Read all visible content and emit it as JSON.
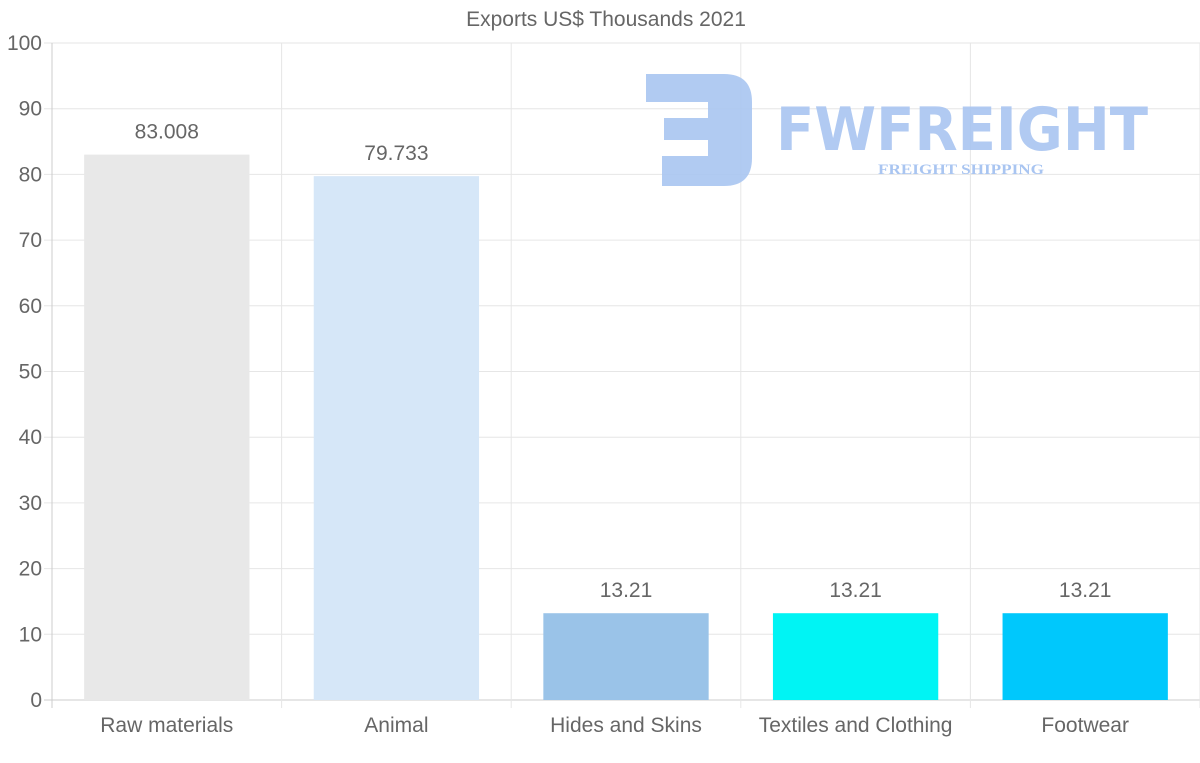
{
  "chart_data": {
    "type": "bar",
    "title": "Exports US$ Thousands 2021",
    "xlabel": "",
    "ylabel": "",
    "ylim": [
      0,
      100
    ],
    "yticks": [
      0,
      10,
      20,
      30,
      40,
      50,
      60,
      70,
      80,
      90,
      100
    ],
    "grid": true,
    "legend": "none",
    "categories": [
      "Raw materials",
      "Animal",
      "Hides and Skins",
      "Textiles and Clothing",
      "Footwear"
    ],
    "values": [
      83.008,
      79.733,
      13.21,
      13.21,
      13.21
    ],
    "value_labels": [
      "83.008",
      "79.733",
      "13.21",
      "13.21",
      "13.21"
    ],
    "colors": [
      "#e8e8e8",
      "#d6e7f8",
      "#9ac3e8",
      "#00f4f4",
      "#00c8fc"
    ]
  },
  "watermark": {
    "brand": "FWFREIGHT",
    "tagline": "FREIGHT SHIPPING",
    "color": "#a9c5f1"
  }
}
